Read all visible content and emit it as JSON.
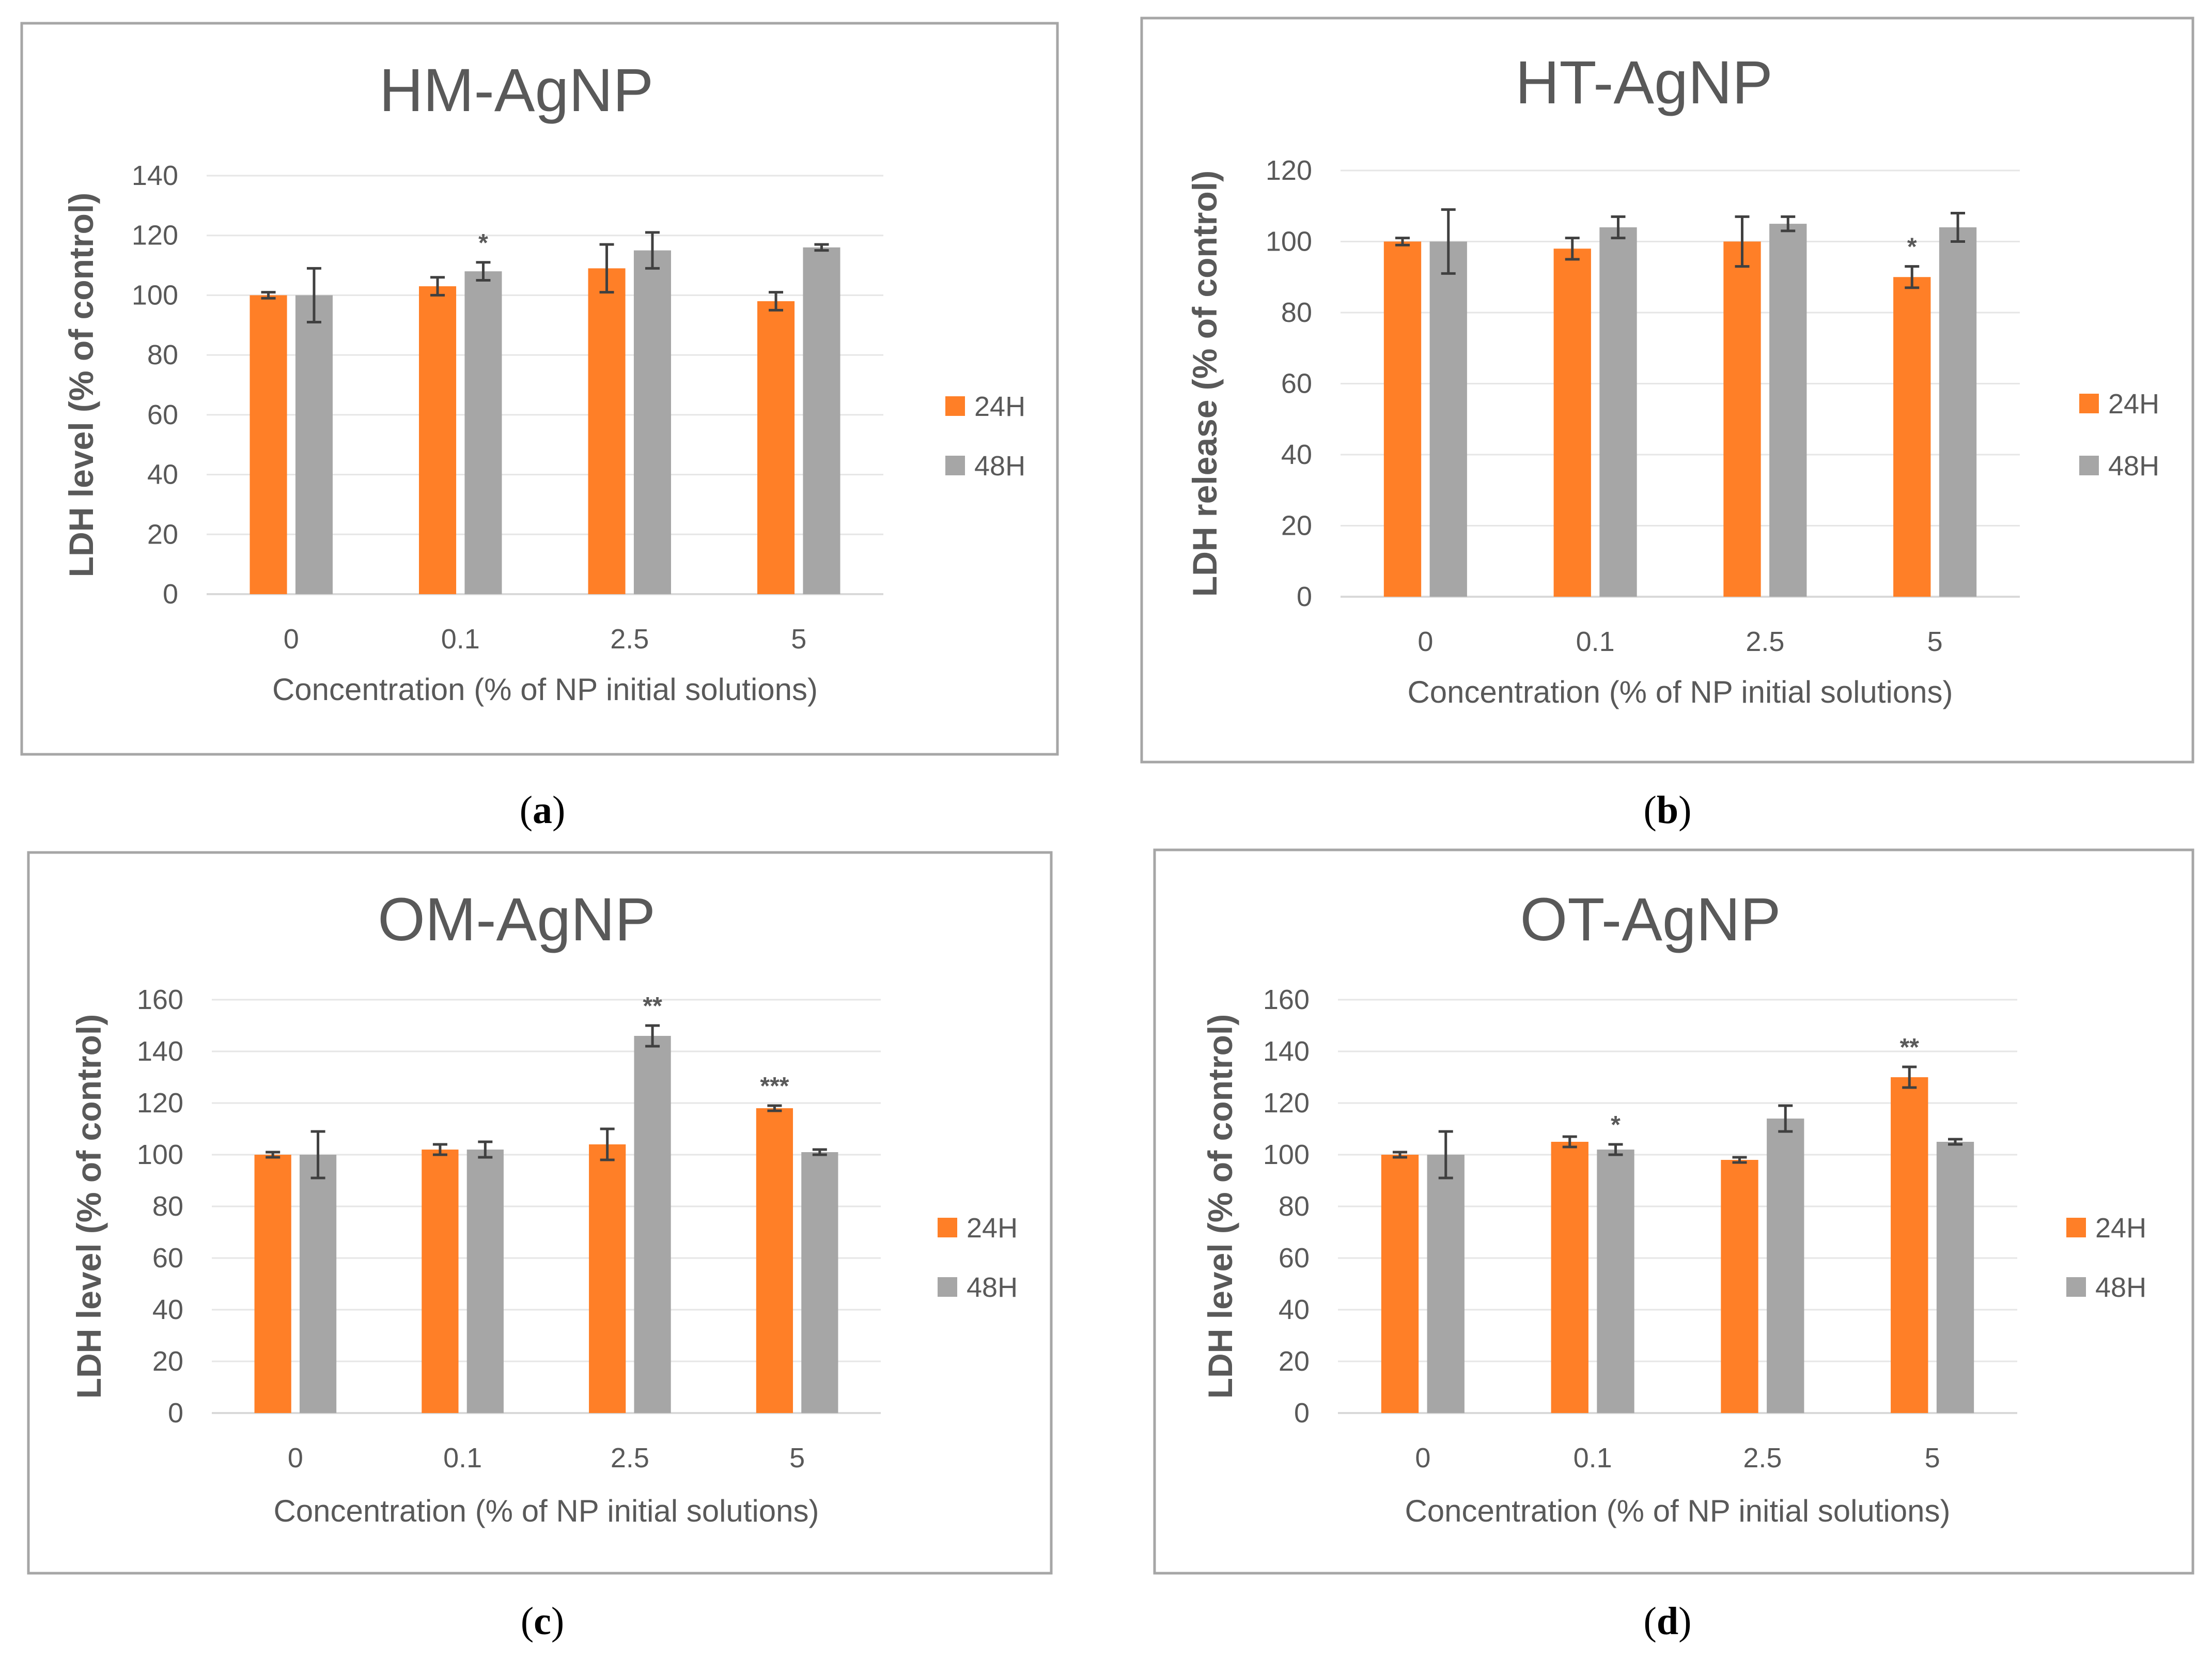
{
  "figure": {
    "panels": [
      "a",
      "b",
      "c",
      "d"
    ]
  },
  "chart_data": [
    {
      "panel": "a",
      "type": "bar",
      "title": "HM-AgNP",
      "xlabel": "Concentration (% of NP initial solutions)",
      "ylabel": "LDH level (% of control)",
      "ylim": [
        0,
        140
      ],
      "yticks": [
        0,
        20,
        40,
        60,
        80,
        100,
        120,
        140
      ],
      "categories": [
        "0",
        "0.1",
        "2.5",
        "5"
      ],
      "grid": true,
      "legend": "right",
      "series": [
        {
          "name": "24H",
          "color": "#FF7F27",
          "values": [
            100,
            103,
            109,
            98
          ],
          "errors": [
            1,
            3,
            8,
            3
          ],
          "annotations": [
            "",
            "",
            "",
            ""
          ]
        },
        {
          "name": "48H",
          "color": "#A6A6A6",
          "values": [
            100,
            108,
            115,
            116
          ],
          "errors": [
            9,
            3,
            6,
            1
          ],
          "annotations": [
            "",
            "*",
            "",
            ""
          ]
        }
      ]
    },
    {
      "panel": "b",
      "type": "bar",
      "title": "HT-AgNP",
      "xlabel": "Concentration (% of NP initial solutions)",
      "ylabel": "LDH release (% of control)",
      "ylim": [
        0,
        120
      ],
      "yticks": [
        0,
        20,
        40,
        60,
        80,
        100,
        120
      ],
      "categories": [
        "0",
        "0.1",
        "2.5",
        "5"
      ],
      "grid": true,
      "legend": "right",
      "series": [
        {
          "name": "24H",
          "color": "#FF7F27",
          "values": [
            100,
            98,
            100,
            90
          ],
          "errors": [
            1,
            3,
            7,
            3
          ],
          "annotations": [
            "",
            "",
            "",
            "*"
          ]
        },
        {
          "name": "48H",
          "color": "#A6A6A6",
          "values": [
            100,
            104,
            105,
            104
          ],
          "errors": [
            9,
            3,
            2,
            4
          ],
          "annotations": [
            "",
            "",
            "",
            ""
          ]
        }
      ]
    },
    {
      "panel": "c",
      "type": "bar",
      "title": "OM-AgNP",
      "xlabel": "Concentration (% of NP initial solutions)",
      "ylabel": "LDH level (% of control)",
      "ylim": [
        0,
        160
      ],
      "yticks": [
        0,
        20,
        40,
        60,
        80,
        100,
        120,
        140,
        160
      ],
      "categories": [
        "0",
        "0.1",
        "2.5",
        "5"
      ],
      "grid": true,
      "legend": "right",
      "series": [
        {
          "name": "24H",
          "color": "#FF7F27",
          "values": [
            100,
            102,
            104,
            118
          ],
          "errors": [
            1,
            2,
            6,
            1
          ],
          "annotations": [
            "",
            "",
            "",
            "***"
          ]
        },
        {
          "name": "48H",
          "color": "#A6A6A6",
          "values": [
            100,
            102,
            146,
            101
          ],
          "errors": [
            9,
            3,
            4,
            1
          ],
          "annotations": [
            "",
            "",
            "**",
            ""
          ]
        }
      ]
    },
    {
      "panel": "d",
      "type": "bar",
      "title": "OT-AgNP",
      "xlabel": "Concentration (% of NP initial solutions)",
      "ylabel": "LDH level (% of control)",
      "ylim": [
        0,
        160
      ],
      "yticks": [
        0,
        20,
        40,
        60,
        80,
        100,
        120,
        140,
        160
      ],
      "categories": [
        "0",
        "0.1",
        "2.5",
        "5"
      ],
      "grid": true,
      "legend": "right",
      "series": [
        {
          "name": "24H",
          "color": "#FF7F27",
          "values": [
            100,
            105,
            98,
            130
          ],
          "errors": [
            1,
            2,
            1,
            4
          ],
          "annotations": [
            "",
            "",
            "",
            "**"
          ]
        },
        {
          "name": "48H",
          "color": "#A6A6A6",
          "values": [
            100,
            102,
            114,
            105
          ],
          "errors": [
            9,
            2,
            5,
            1
          ],
          "annotations": [
            "",
            "*",
            "",
            ""
          ]
        }
      ]
    }
  ]
}
